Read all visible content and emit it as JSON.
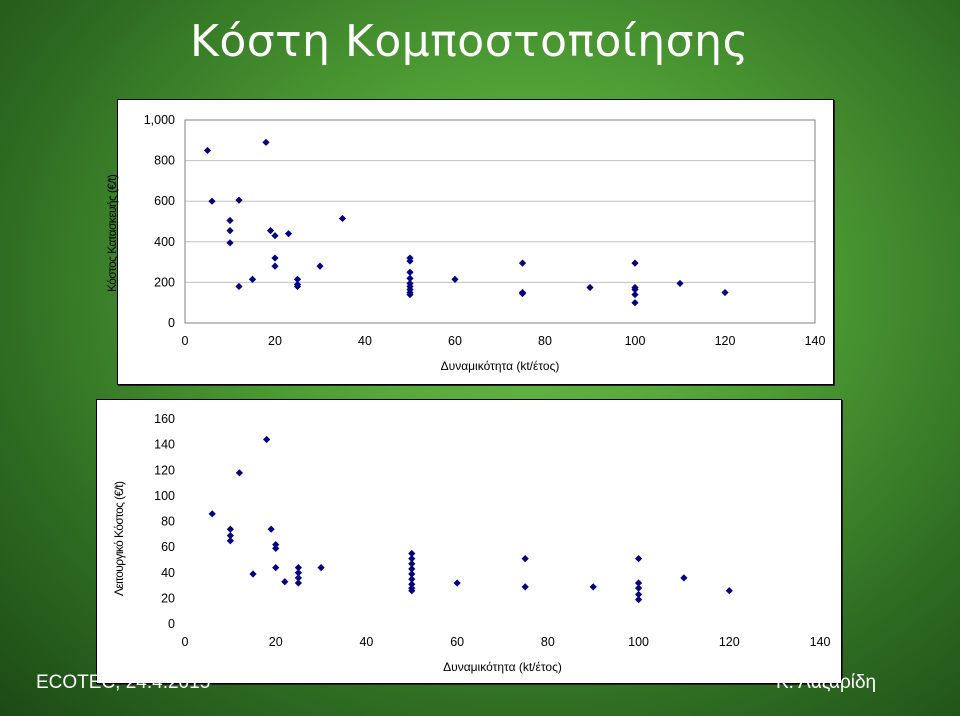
{
  "slide": {
    "title": "Κόστη Κομποστοποίησης",
    "footer_left": "ECOTEC, 24.4.2015",
    "footer_right": "Κ. Λαζαρίδη"
  },
  "colors": {
    "marker": "#000080",
    "grid": "#c0c0c0",
    "plot_border": "#808080",
    "background_green": "#4f9e35"
  },
  "chart_data": [
    {
      "type": "scatter",
      "title": "",
      "xlabel": "Δυναμικότητα (kt/έτος)",
      "ylabel": "Κόστος Κατασκευής (€/t)",
      "xlim": [
        0,
        140
      ],
      "ylim": [
        0,
        1000
      ],
      "xticks": [
        0,
        20,
        40,
        60,
        80,
        100,
        120,
        140
      ],
      "yticks": [
        0,
        200,
        400,
        600,
        800,
        1000
      ],
      "ytick_labels": [
        "0",
        "200",
        "400",
        "600",
        "800",
        "1,000"
      ],
      "grid": "horizontal",
      "legend": "none",
      "points": [
        [
          5,
          850
        ],
        [
          6,
          600
        ],
        [
          10,
          505
        ],
        [
          10,
          455
        ],
        [
          10,
          395
        ],
        [
          12,
          605
        ],
        [
          12,
          180
        ],
        [
          15,
          215
        ],
        [
          18,
          890
        ],
        [
          19,
          455
        ],
        [
          20,
          430
        ],
        [
          20,
          320
        ],
        [
          20,
          280
        ],
        [
          23,
          440
        ],
        [
          25,
          215
        ],
        [
          25,
          190
        ],
        [
          25,
          180
        ],
        [
          30,
          280
        ],
        [
          35,
          515
        ],
        [
          50,
          320
        ],
        [
          50,
          305
        ],
        [
          50,
          250
        ],
        [
          50,
          220
        ],
        [
          50,
          195
        ],
        [
          50,
          180
        ],
        [
          50,
          165
        ],
        [
          50,
          150
        ],
        [
          50,
          140
        ],
        [
          60,
          215
        ],
        [
          75,
          295
        ],
        [
          75,
          150
        ],
        [
          75,
          145
        ],
        [
          90,
          175
        ],
        [
          100,
          295
        ],
        [
          100,
          175
        ],
        [
          100,
          165
        ],
        [
          100,
          140
        ],
        [
          100,
          100
        ],
        [
          110,
          195
        ],
        [
          120,
          150
        ]
      ]
    },
    {
      "type": "scatter",
      "title": "",
      "xlabel": "Δυναμικότητα (kt/έτος)",
      "ylabel": "Λειτουργικό Κόστος (€/t)",
      "xlim": [
        0,
        140
      ],
      "ylim": [
        0,
        160
      ],
      "xticks": [
        0,
        20,
        40,
        60,
        80,
        100,
        120,
        140
      ],
      "yticks": [
        0,
        20,
        40,
        60,
        80,
        100,
        120,
        140,
        160
      ],
      "ytick_labels": [
        "0",
        "20",
        "40",
        "60",
        "80",
        "100",
        "120",
        "140",
        "160"
      ],
      "grid": "none",
      "legend": "none",
      "points": [
        [
          6,
          86
        ],
        [
          10,
          74
        ],
        [
          10,
          69
        ],
        [
          10,
          65
        ],
        [
          12,
          118
        ],
        [
          15,
          39
        ],
        [
          18,
          144
        ],
        [
          19,
          74
        ],
        [
          20,
          62
        ],
        [
          20,
          59
        ],
        [
          20,
          44
        ],
        [
          22,
          33
        ],
        [
          25,
          44
        ],
        [
          25,
          40
        ],
        [
          25,
          36
        ],
        [
          25,
          32
        ],
        [
          30,
          44
        ],
        [
          50,
          55
        ],
        [
          50,
          51
        ],
        [
          50,
          47
        ],
        [
          50,
          43
        ],
        [
          50,
          39
        ],
        [
          50,
          35
        ],
        [
          50,
          31
        ],
        [
          50,
          28
        ],
        [
          50,
          26
        ],
        [
          60,
          32
        ],
        [
          75,
          51
        ],
        [
          75,
          29
        ],
        [
          90,
          29
        ],
        [
          100,
          51
        ],
        [
          100,
          32
        ],
        [
          100,
          28
        ],
        [
          100,
          23
        ],
        [
          100,
          19
        ],
        [
          110,
          36
        ],
        [
          120,
          26
        ]
      ]
    }
  ]
}
